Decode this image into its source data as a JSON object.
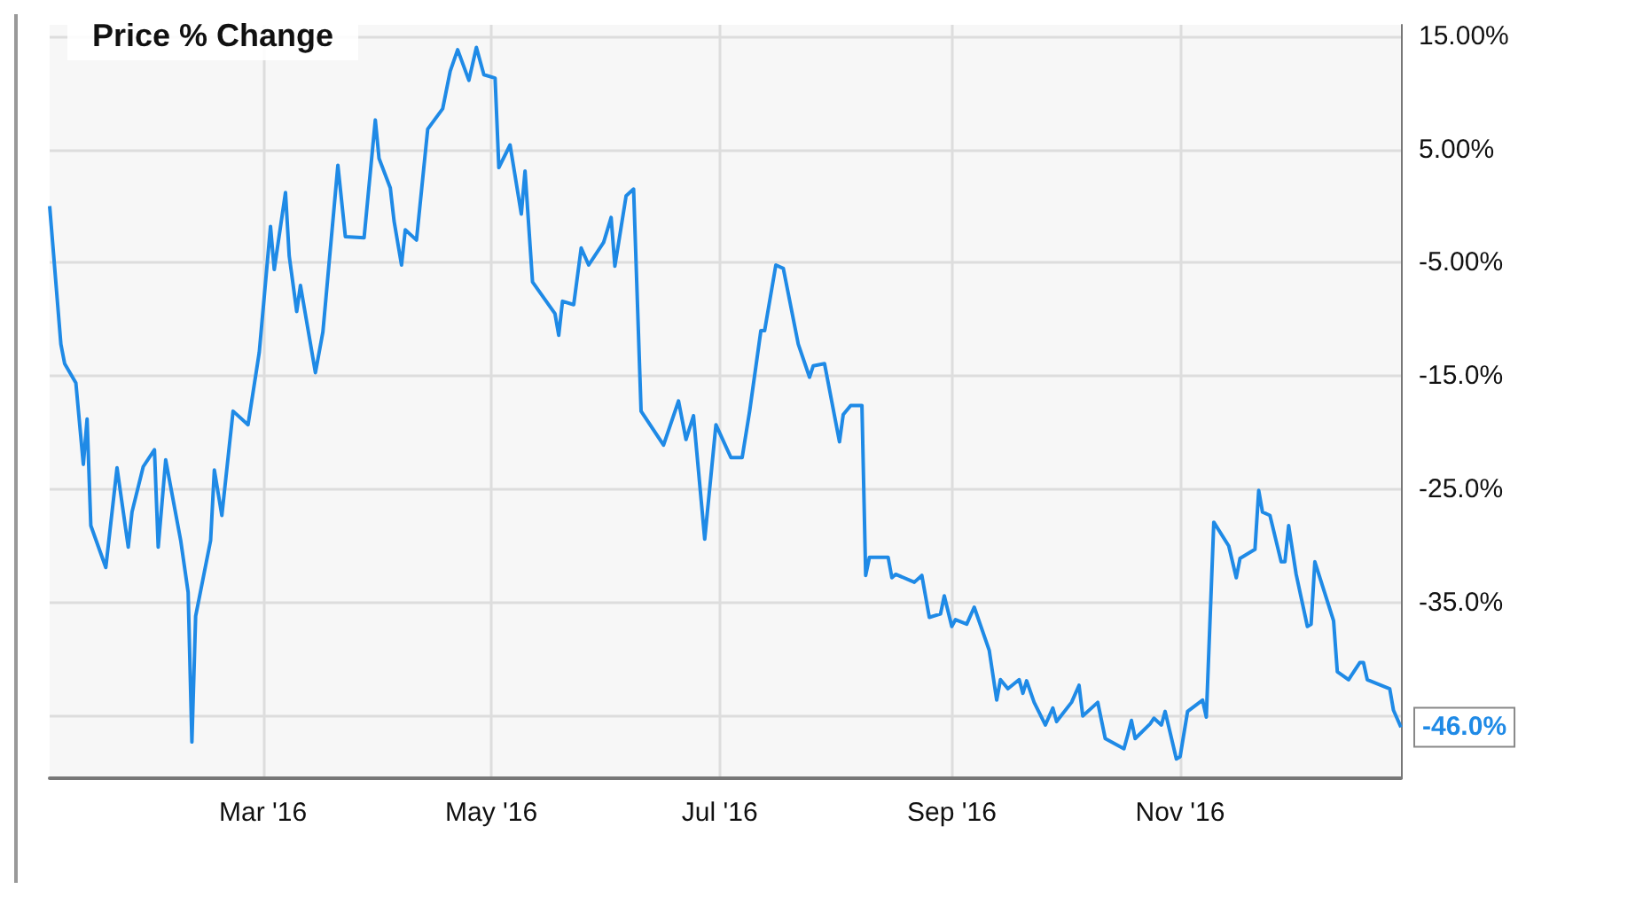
{
  "chart_data": {
    "type": "line",
    "title": "Price % Change",
    "x": [
      "2016-01-04",
      "2016-01-07",
      "2016-01-08",
      "2016-01-11",
      "2016-01-13",
      "2016-01-14",
      "2016-01-15",
      "2016-01-19",
      "2016-01-22",
      "2016-01-25",
      "2016-01-26",
      "2016-01-29",
      "2016-02-01",
      "2016-02-02",
      "2016-02-04",
      "2016-02-08",
      "2016-02-10",
      "2016-02-11",
      "2016-02-12",
      "2016-02-16",
      "2016-02-17",
      "2016-02-19",
      "2016-02-22",
      "2016-02-26",
      "2016-02-29",
      "2016-03-03",
      "2016-03-04",
      "2016-03-07",
      "2016-03-08",
      "2016-03-10",
      "2016-03-11",
      "2016-03-15",
      "2016-03-17",
      "2016-03-21",
      "2016-03-23",
      "2016-03-28",
      "2016-03-31",
      "2016-04-01",
      "2016-04-04",
      "2016-04-05",
      "2016-04-07",
      "2016-04-08",
      "2016-04-11",
      "2016-04-14",
      "2016-04-18",
      "2016-04-20",
      "2016-04-22",
      "2016-04-25",
      "2016-04-27",
      "2016-04-29",
      "2016-05-02",
      "2016-05-03",
      "2016-05-06",
      "2016-05-09",
      "2016-05-10",
      "2016-05-12",
      "2016-05-18",
      "2016-05-19",
      "2016-05-20",
      "2016-05-23",
      "2016-05-25",
      "2016-05-27",
      "2016-05-31",
      "2016-06-02",
      "2016-06-03",
      "2016-06-06",
      "2016-06-08",
      "2016-06-10",
      "2016-06-16",
      "2016-06-20",
      "2016-06-22",
      "2016-06-24",
      "2016-06-27",
      "2016-06-30",
      "2016-07-04",
      "2016-07-07",
      "2016-07-09",
      "2016-07-12",
      "2016-07-13",
      "2016-07-16",
      "2016-07-18",
      "2016-07-22",
      "2016-07-25",
      "2016-07-26",
      "2016-07-29",
      "2016-08-02",
      "2016-08-03",
      "2016-08-05",
      "2016-08-08",
      "2016-08-09",
      "2016-08-10",
      "2016-08-15",
      "2016-08-16",
      "2016-08-17",
      "2016-08-22",
      "2016-08-24",
      "2016-08-26",
      "2016-08-29",
      "2016-08-30",
      "2016-09-01",
      "2016-09-02",
      "2016-09-05",
      "2016-09-07",
      "2016-09-11",
      "2016-09-13",
      "2016-09-14",
      "2016-09-16",
      "2016-09-19",
      "2016-09-20",
      "2016-09-21",
      "2016-09-23",
      "2016-09-26",
      "2016-09-28",
      "2016-09-29",
      "2016-10-03",
      "2016-10-05",
      "2016-10-06",
      "2016-10-10",
      "2016-10-12",
      "2016-10-17",
      "2016-10-18",
      "2016-10-19",
      "2016-10-20",
      "2016-10-24",
      "2016-10-25",
      "2016-10-27",
      "2016-10-28",
      "2016-10-31",
      "2016-11-01",
      "2016-11-03",
      "2016-11-07",
      "2016-11-08",
      "2016-11-10",
      "2016-11-14",
      "2016-11-16",
      "2016-11-17",
      "2016-11-21",
      "2016-11-22",
      "2016-11-23",
      "2016-11-25",
      "2016-11-28",
      "2016-11-29",
      "2016-11-30",
      "2016-12-02",
      "2016-12-05",
      "2016-12-06",
      "2016-12-07",
      "2016-12-12",
      "2016-12-13",
      "2016-12-16",
      "2016-12-19",
      "2016-12-20",
      "2016-12-21",
      "2016-12-27",
      "2016-12-28",
      "2016-12-30"
    ],
    "series": [
      {
        "color": "#1f8ae6",
        "values": [
          0.0,
          -12.2,
          -13.9,
          -15.6,
          -22.8,
          -18.8,
          -28.2,
          -31.9,
          -23.1,
          -30.1,
          -27.0,
          -23.0,
          -21.5,
          -30.1,
          -22.4,
          -29.5,
          -34.1,
          -47.3,
          -36.2,
          -29.5,
          -23.3,
          -27.3,
          -18.1,
          -19.3,
          -12.9,
          -1.8,
          -5.6,
          1.2,
          -4.4,
          -9.3,
          -7.0,
          -14.7,
          -11.1,
          3.6,
          -2.7,
          -2.8,
          7.6,
          4.2,
          1.6,
          -1.3,
          -5.2,
          -2.1,
          -3.0,
          6.8,
          8.6,
          11.9,
          13.8,
          11.1,
          14.0,
          11.6,
          11.3,
          3.4,
          5.4,
          -0.7,
          3.1,
          -6.7,
          -9.5,
          -11.4,
          -8.4,
          -8.7,
          -3.7,
          -5.2,
          -3.2,
          -1.0,
          -5.3,
          0.9,
          1.5,
          -18.1,
          -21.1,
          -17.2,
          -20.6,
          -18.5,
          -29.4,
          -19.3,
          -22.2,
          -22.2,
          -18.1,
          -11.0,
          -11.0,
          -5.2,
          -5.5,
          -12.2,
          -15.1,
          -14.1,
          -13.9,
          -20.8,
          -18.4,
          -17.6,
          -17.6,
          -32.6,
          -31.0,
          -31.0,
          -32.8,
          -32.5,
          -33.2,
          -32.6,
          -36.3,
          -36.0,
          -34.4,
          -37.1,
          -36.5,
          -36.9,
          -35.4,
          -39.2,
          -43.6,
          -41.8,
          -42.6,
          -41.8,
          -43.0,
          -41.9,
          -43.8,
          -45.8,
          -44.3,
          -45.5,
          -43.8,
          -42.3,
          -45.0,
          -43.8,
          -47.0,
          -47.9,
          -46.7,
          -45.4,
          -47.0,
          -45.7,
          -45.2,
          -45.8,
          -44.6,
          -48.8,
          -48.6,
          -44.6,
          -43.6,
          -45.1,
          -27.9,
          -30.0,
          -32.8,
          -31.1,
          -30.3,
          -25.1,
          -27.0,
          -27.3,
          -31.4,
          -31.4,
          -28.2,
          -32.5,
          -37.1,
          -36.9,
          -31.4,
          -36.6,
          -41.1,
          -41.8,
          -40.3,
          -40.3,
          -41.8,
          -42.6,
          -44.5,
          -46.0
        ]
      }
    ],
    "xlim": [
      "2016-01-04",
      "2016-12-30"
    ],
    "xticks": [
      {
        "value": "2016-03-01",
        "label": "Mar '16"
      },
      {
        "value": "2016-05-01",
        "label": "May '16"
      },
      {
        "value": "2016-07-01",
        "label": "Jul '16"
      },
      {
        "value": "2016-09-01",
        "label": "Sep '16"
      },
      {
        "value": "2016-11-01",
        "label": "Nov '16"
      }
    ],
    "ylim": [
      -50.5,
      16
    ],
    "yticks": [
      {
        "value": 15,
        "label": "15.00%"
      },
      {
        "value": 5,
        "label": "5.00%"
      },
      {
        "value": -5,
        "label": "-5.00%"
      },
      {
        "value": -15,
        "label": "-15.0%"
      },
      {
        "value": -25,
        "label": "-25.0%"
      },
      {
        "value": -35,
        "label": "-35.0%"
      },
      {
        "value": -45,
        "label": null
      }
    ],
    "grid": true,
    "annotations": [
      {
        "text": "-46.0%",
        "x": "2016-12-30",
        "y": -46.0
      }
    ]
  }
}
